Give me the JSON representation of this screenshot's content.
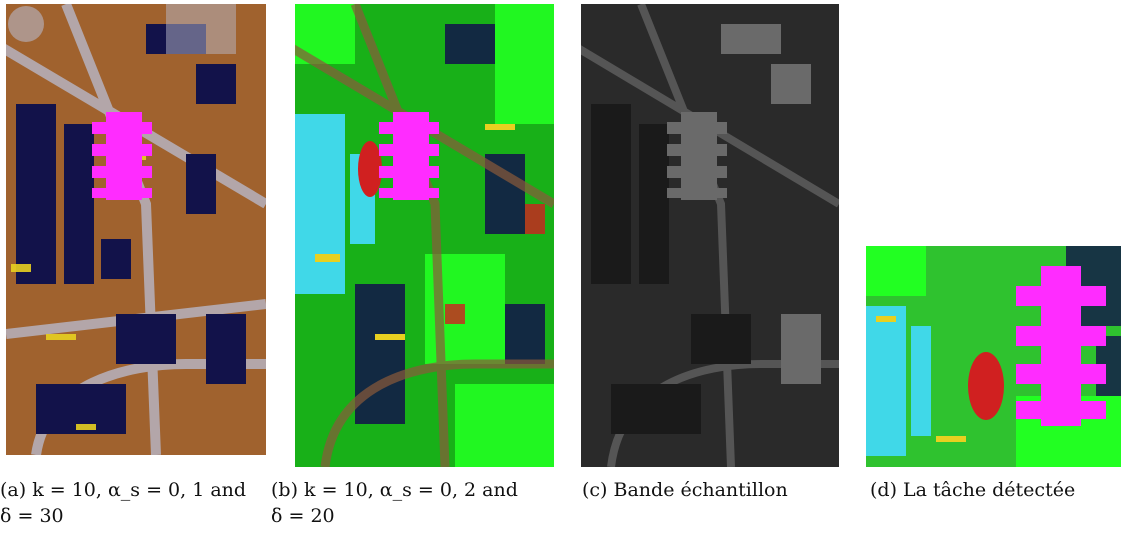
{
  "figure": {
    "panels": [
      {
        "id": "a",
        "caption_line1": "(a) k = 10, α_s = 0, 1 and",
        "caption_line2": "δ = 30",
        "base_color": "#a0622e"
      },
      {
        "id": "b",
        "caption_line1": "(b) k = 10, α_s = 0, 2 and",
        "caption_line2": "δ = 20",
        "base_color": "#18b018"
      },
      {
        "id": "c",
        "caption_line1": "(c) Bande échantillon",
        "base_color": "#2a2a2a"
      },
      {
        "id": "d",
        "caption_line1": "(d) La tâche détectée",
        "base_color": "#2fc22f"
      }
    ],
    "palette": {
      "magenta": "#ff2cff",
      "navy": "#12124a",
      "yellow": "#e8d020",
      "cyan": "#40d8e8",
      "green_bright": "#22ff22",
      "red": "#d02020",
      "grey": "#b8b8c8",
      "brown": "#a0622e"
    }
  }
}
